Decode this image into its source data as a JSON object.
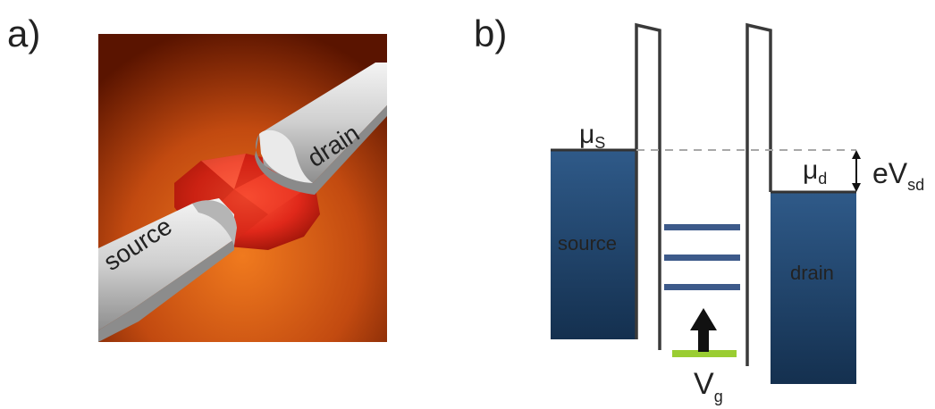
{
  "panel_a": {
    "label": "a)",
    "source_label": "source",
    "drain_label": "drain"
  },
  "panel_b": {
    "label": "b)",
    "mu_s": {
      "symbol": "μ",
      "sub": "S"
    },
    "mu_d": {
      "symbol": "μ",
      "sub": "d"
    },
    "bias": {
      "main": "eV",
      "sub": "sd"
    },
    "gate": {
      "main": "V",
      "sub": "g"
    },
    "source_label": "source",
    "drain_label": "drain",
    "level_count_note": "3 discrete energy levels between barriers"
  },
  "colors": {
    "reservoir_top": "#2f5a89",
    "reservoir_bottom": "#14304f",
    "energy_level": "#3d5a8a",
    "gate_bar": "#9acd32",
    "barrier": "#3a3a3a",
    "dashed_line": "#a8a8a8",
    "backdrop_light": "#f07a1e",
    "backdrop_dark": "#5a1400",
    "island": "#e0281a",
    "electrode": "#d8d8d8"
  }
}
